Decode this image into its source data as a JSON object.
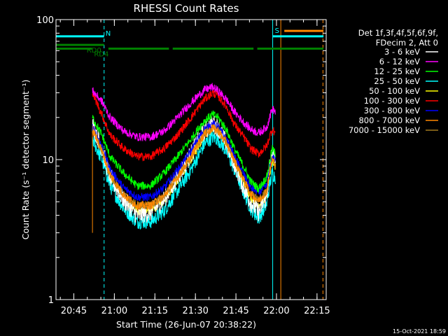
{
  "chart_data": {
    "type": "line",
    "title": "RHESSI Count Rates",
    "xlabel": "Start Time (26-Jun-07 20:38:22)",
    "ylabel": "Count Rate (s⁻¹ detector segment⁻¹)",
    "x_unit": "minutes since 20:38:22",
    "xlim": [
      0,
      100
    ],
    "ylim": [
      1,
      100
    ],
    "yscale": "log",
    "x_ticks": [
      {
        "value": 6.6,
        "label": "20:45"
      },
      {
        "value": 21.6,
        "label": "21:00"
      },
      {
        "value": 36.6,
        "label": "21:15"
      },
      {
        "value": 51.6,
        "label": "21:30"
      },
      {
        "value": 66.6,
        "label": "21:45"
      },
      {
        "value": 81.6,
        "label": "22:00"
      },
      {
        "value": 96.6,
        "label": "22:15"
      }
    ],
    "y_ticks": [
      {
        "value": 1,
        "label": "1"
      },
      {
        "value": 10,
        "label": "10"
      },
      {
        "value": 100,
        "label": "100"
      }
    ],
    "legend_header": [
      "Det 1f,3f,4f,5f,6f,9f,",
      "FDecim 2, Att 0"
    ],
    "legend_placement": "right",
    "timestamp": "15-Oct-2021 18:59",
    "x_samples": [
      13.5,
      17,
      20,
      25,
      30,
      35,
      40,
      45,
      50,
      53,
      55,
      58,
      60,
      63,
      66,
      70,
      72,
      75,
      78,
      79,
      80,
      81.2
    ],
    "series": [
      {
        "name": "3 - 6 keV",
        "color": "#ffffff",
        "values": [
          18,
          12,
          7.5,
          5.2,
          4.0,
          4.2,
          5.2,
          7.5,
          11,
          14,
          16,
          18,
          17,
          13,
          9.5,
          6,
          5,
          4.2,
          5.5,
          9,
          11,
          10
        ]
      },
      {
        "name": "6 - 12 keV",
        "color": "#ff00ff",
        "values": [
          31,
          26,
          20,
          16,
          14.5,
          14.5,
          16,
          20,
          25.5,
          29,
          31.5,
          33,
          31,
          27,
          22,
          18,
          16.5,
          15.5,
          17,
          20,
          23,
          22
        ]
      },
      {
        "name": "12 - 25 keV",
        "color": "#00ff00",
        "values": [
          20,
          15,
          10.5,
          8,
          6.5,
          6.5,
          8,
          10.5,
          14,
          17,
          19,
          21,
          20,
          16.5,
          12,
          8.5,
          7,
          6.2,
          7.5,
          9.5,
          12,
          11
        ]
      },
      {
        "name": "25 - 50 keV",
        "color": "#00ffff",
        "values": [
          14,
          10,
          6.5,
          4.5,
          3.6,
          3.6,
          4.3,
          6,
          8.5,
          11,
          13,
          14.5,
          14,
          11.5,
          8.5,
          5.5,
          4.5,
          3.8,
          4.8,
          6.5,
          8,
          7.5
        ]
      },
      {
        "name": "50 - 100 keV",
        "color": "#ffff00",
        "values": [
          16,
          11.5,
          7.5,
          5.3,
          4.3,
          4.3,
          5.1,
          7.1,
          10,
          12.8,
          15,
          16.6,
          16,
          13,
          9.7,
          6.4,
          5.3,
          4.6,
          5.6,
          7.6,
          9.5,
          8.8
        ]
      },
      {
        "name": "100 - 300 keV",
        "color": "#ff0000",
        "values": [
          30,
          21,
          15,
          12,
          10.5,
          10.5,
          12,
          15,
          20,
          24,
          27,
          30,
          28.5,
          24,
          18,
          14,
          12,
          11,
          12.5,
          14.5,
          16.5,
          15.5
        ]
      },
      {
        "name": "300 - 800 keV",
        "color": "#0000ff",
        "values": [
          17,
          12.5,
          8.5,
          6.3,
          5.4,
          5.4,
          6.3,
          8.4,
          11.5,
          14.5,
          16.5,
          18,
          17,
          14,
          10.5,
          7.5,
          6.3,
          5.8,
          6.5,
          8.5,
          10.5,
          9.8
        ]
      },
      {
        "name": "800 - 7000 keV",
        "color": "#ff8800",
        "values": [
          16.5,
          11.5,
          7.8,
          5.6,
          4.7,
          4.7,
          5.5,
          7.5,
          10.5,
          13.3,
          15.3,
          16.8,
          16,
          13.2,
          9.8,
          6.8,
          5.7,
          5.1,
          6.0,
          8.0,
          10,
          9.3
        ]
      },
      {
        "name": "7000 - 15000 keV",
        "color": "#a0781e",
        "values": [
          16.5,
          11.5,
          7.8,
          5.6,
          4.7,
          4.7,
          5.5,
          7.5,
          10.5,
          13.3,
          15.3,
          16.8,
          16,
          13.2,
          9.8,
          6.8,
          5.7,
          5.1,
          6.0,
          8.0,
          10,
          9.3
        ]
      }
    ],
    "vertical_markers": [
      {
        "x": 0,
        "color": "#00ffff",
        "style": "solid"
      },
      {
        "x": 17.8,
        "color": "#00ffff",
        "style": "dashed"
      },
      {
        "x": 80.2,
        "color": "#00ffff",
        "style": "solid"
      },
      {
        "x": 83.2,
        "color": "#ff8800",
        "style": "solid"
      },
      {
        "x": 98.8,
        "color": "#ff8800",
        "style": "dashed"
      }
    ],
    "flag_bars": [
      {
        "label": "N",
        "color": "#00ffff",
        "y": 76,
        "segments": [
          [
            0,
            17.8
          ]
        ]
      },
      {
        "label": "RD0",
        "color": "#008000",
        "y": 66,
        "segments": [
          [
            0,
            17.8
          ]
        ]
      },
      {
        "label": "RD4",
        "color": "#008000",
        "y": 62,
        "segments": [
          [
            0,
            13.3
          ],
          [
            19.4,
            41.8
          ],
          [
            43.2,
            73.1
          ],
          [
            74.5,
            99
          ]
        ]
      },
      {
        "label": "S",
        "color": "#00ffff",
        "y": 76,
        "segments": [
          [
            80.2,
            99
          ]
        ]
      },
      {
        "label": "",
        "color": "#ff8800",
        "y": 83,
        "segments": [
          [
            84.5,
            99
          ]
        ]
      }
    ]
  }
}
